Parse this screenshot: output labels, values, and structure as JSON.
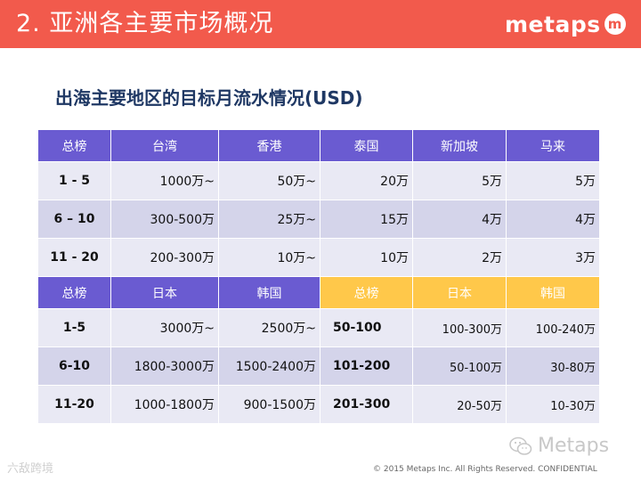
{
  "header": {
    "title": "2.  亚洲各主要市场概况",
    "logo_text": "metaps",
    "logo_mark": "m"
  },
  "subtitle": "出海主要地区的目标月流水情况(USD)",
  "table": {
    "section1_headers": [
      "总榜",
      "台湾",
      "香港",
      "泰国",
      "新加坡",
      "马来"
    ],
    "section1_rows": [
      {
        "rank": "1 - 5",
        "cells": [
          "1000万~",
          "50万~",
          "20万",
          "5万",
          "5万"
        ]
      },
      {
        "rank": "6 – 10",
        "cells": [
          "300-500万",
          "25万~",
          "15万",
          "4万",
          "4万"
        ]
      },
      {
        "rank": "11 - 20",
        "cells": [
          "200-300万",
          "10万~",
          "10万",
          "2万",
          "3万"
        ]
      }
    ],
    "section2_headers": [
      "总榜",
      "日本",
      "韩国",
      "总榜",
      "日本",
      "韩国"
    ],
    "section2_rows": [
      {
        "rank": "1-5",
        "jp": "3000万~",
        "kr": "2500万~",
        "rank2": "50-100",
        "jp2": "100-300万",
        "kr2": "100-240万"
      },
      {
        "rank": "6-10",
        "jp": "1800-3000万",
        "kr": "1500-2400万",
        "rank2": "101-200",
        "jp2": "50-100万",
        "kr2": "30-80万"
      },
      {
        "rank": "11-20",
        "jp": "1000-1800万",
        "kr": "900-1500万",
        "rank2": "201-300",
        "jp2": "20-50万",
        "kr2": "10-30万"
      }
    ]
  },
  "wechat_label": "Metaps",
  "footer": "© 2015 Metaps Inc. All Rights Reserved. CONFIDENTIAL",
  "watermark": "六敌跨境",
  "colors": {
    "header": "#f25a4c",
    "table_header": "#6a5bd1",
    "table_header_alt": "#ffc84a",
    "band1": "#e9e9f4",
    "band2": "#d4d4ea"
  }
}
